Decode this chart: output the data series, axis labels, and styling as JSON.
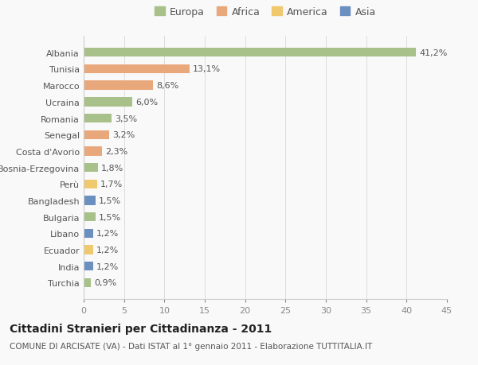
{
  "categories": [
    "Albania",
    "Tunisia",
    "Marocco",
    "Ucraina",
    "Romania",
    "Senegal",
    "Costa d'Avorio",
    "Bosnia-Erzegovina",
    "Perù",
    "Bangladesh",
    "Bulgaria",
    "Libano",
    "Ecuador",
    "India",
    "Turchia"
  ],
  "values": [
    41.2,
    13.1,
    8.6,
    6.0,
    3.5,
    3.2,
    2.3,
    1.8,
    1.7,
    1.5,
    1.5,
    1.2,
    1.2,
    1.2,
    0.9
  ],
  "labels": [
    "41,2%",
    "13,1%",
    "8,6%",
    "6,0%",
    "3,5%",
    "3,2%",
    "2,3%",
    "1,8%",
    "1,7%",
    "1,5%",
    "1,5%",
    "1,2%",
    "1,2%",
    "1,2%",
    "0,9%"
  ],
  "colors": [
    "#a8c08a",
    "#e8a87c",
    "#e8a87c",
    "#a8c08a",
    "#a8c08a",
    "#e8a87c",
    "#e8a87c",
    "#a8c08a",
    "#f0c96e",
    "#6b8fbf",
    "#a8c08a",
    "#6b8fbf",
    "#f0c96e",
    "#6b8fbf",
    "#a8c08a"
  ],
  "legend_labels": [
    "Europa",
    "Africa",
    "America",
    "Asia"
  ],
  "legend_colors": [
    "#a8c08a",
    "#e8a87c",
    "#f0c96e",
    "#6b8fbf"
  ],
  "xlim": [
    0,
    45
  ],
  "xticks": [
    0,
    5,
    10,
    15,
    20,
    25,
    30,
    35,
    40,
    45
  ],
  "title": "Cittadini Stranieri per Cittadinanza - 2011",
  "subtitle": "COMUNE DI ARCISATE (VA) - Dati ISTAT al 1° gennaio 2011 - Elaborazione TUTTITALIA.IT",
  "bg_color": "#f9f9f9",
  "bar_height": 0.55,
  "title_fontsize": 10,
  "subtitle_fontsize": 7.5,
  "label_fontsize": 8,
  "tick_fontsize": 8,
  "legend_fontsize": 9
}
